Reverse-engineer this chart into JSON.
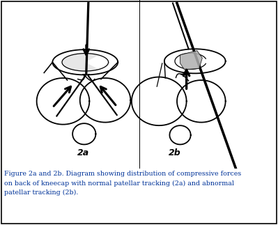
{
  "caption_line1": "Figure 2a and 2b. Diagram showing distribution of compressive forces",
  "caption_line2": "on back of kneecap with normal patellar tracking (2a) and abnormal",
  "caption_line3": "patellar tracking (2b).",
  "caption_color": "#003399",
  "background_color": "#ffffff",
  "border_color": "#000000",
  "label_2a": "2a",
  "label_2b": "2b",
  "fig_width": 3.99,
  "fig_height": 3.23,
  "dpi": 100
}
